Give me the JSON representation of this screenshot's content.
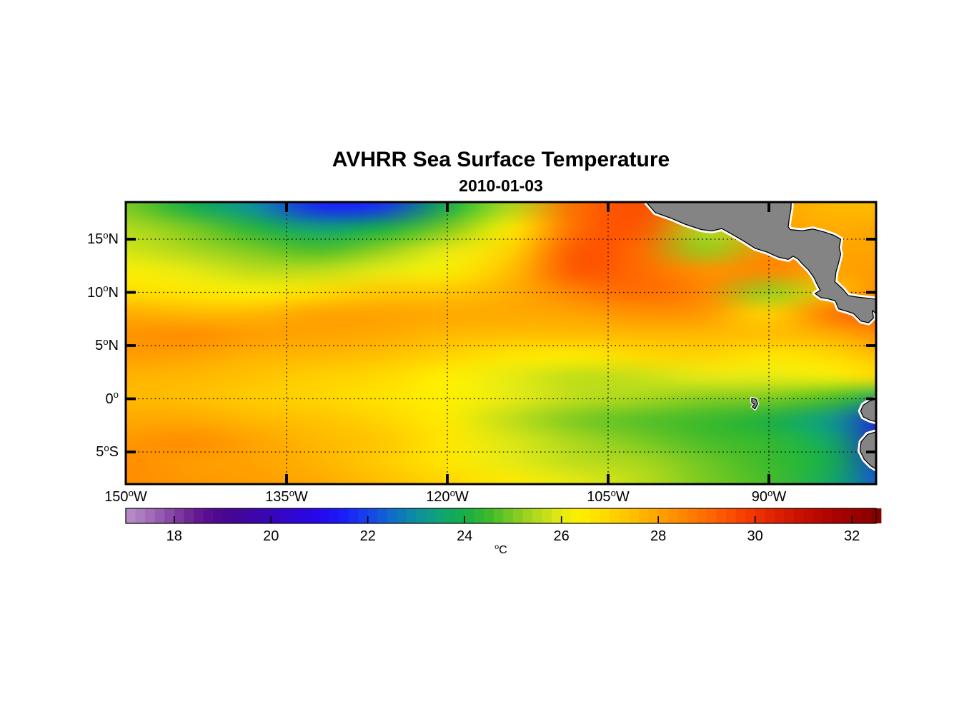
{
  "chart_data": {
    "type": "heatmap",
    "title": "AVHRR Sea Surface Temperature",
    "subtitle": "2010-01-03",
    "x_axis": {
      "ticks": [
        {
          "lon": -150,
          "label": "150",
          "hemi": "W"
        },
        {
          "lon": -135,
          "label": "135",
          "hemi": "W"
        },
        {
          "lon": -120,
          "label": "120",
          "hemi": "W"
        },
        {
          "lon": -105,
          "label": "105",
          "hemi": "W"
        },
        {
          "lon": -90,
          "label": "90",
          "hemi": "W"
        }
      ],
      "gridline_lons": [
        -135,
        -120,
        -105,
        -90
      ]
    },
    "y_axis": {
      "ticks": [
        {
          "lat": 15,
          "label": "15",
          "hemi": "N"
        },
        {
          "lat": 10,
          "label": "10",
          "hemi": "N"
        },
        {
          "lat": 5,
          "label": "5",
          "hemi": "N"
        },
        {
          "lat": 0,
          "label": "0",
          "hemi": ""
        },
        {
          "lat": -5,
          "label": "5",
          "hemi": "S"
        }
      ],
      "gridline_lats": [
        15,
        10,
        5,
        0,
        -5
      ]
    },
    "extent": {
      "lon_min": -150,
      "lon_max": -80,
      "lat_min": -8,
      "lat_max": 18.5
    },
    "grid": {
      "lons": [
        -150,
        -144,
        -138,
        -132,
        -126,
        -120,
        -114,
        -108,
        -102,
        -96,
        -90,
        -84,
        -78
      ],
      "lats": [
        18,
        16,
        14,
        12,
        10,
        8,
        6,
        4,
        2,
        0,
        -2,
        -4,
        -6,
        -8
      ],
      "sst_c": [
        [
          25.0,
          24.0,
          23.0,
          21.6,
          21.8,
          24.0,
          25.5,
          29.0,
          29.5,
          28.5,
          28.0,
          27.6,
          27.6
        ],
        [
          25.5,
          25.0,
          24.2,
          23.4,
          24.0,
          25.0,
          26.5,
          29.0,
          29.4,
          25.5,
          28.0,
          27.8,
          28.0
        ],
        [
          25.8,
          25.4,
          25.0,
          24.6,
          25.2,
          26.0,
          27.0,
          29.4,
          29.0,
          25.2,
          28.4,
          28.0,
          28.0
        ],
        [
          26.3,
          26.0,
          25.6,
          25.6,
          26.0,
          26.3,
          27.5,
          29.4,
          29.0,
          28.3,
          28.5,
          28.0,
          28.2
        ],
        [
          26.8,
          26.6,
          26.3,
          26.8,
          27.3,
          27.3,
          27.8,
          28.6,
          29.0,
          28.5,
          25.2,
          27.5,
          28.6
        ],
        [
          27.8,
          27.6,
          27.6,
          28.0,
          28.0,
          27.9,
          27.9,
          28.0,
          28.3,
          28.2,
          27.0,
          28.8,
          29.2
        ],
        [
          28.3,
          28.4,
          28.1,
          28.0,
          27.9,
          27.6,
          27.5,
          27.5,
          27.6,
          27.6,
          27.5,
          27.8,
          28.6
        ],
        [
          28.1,
          28.0,
          27.7,
          27.6,
          27.4,
          27.0,
          26.6,
          26.5,
          26.9,
          27.0,
          26.6,
          26.9,
          27.6
        ],
        [
          27.7,
          27.6,
          27.4,
          27.1,
          26.9,
          26.4,
          26.0,
          25.6,
          25.7,
          26.0,
          26.0,
          26.2,
          27.0
        ],
        [
          27.6,
          27.5,
          27.2,
          27.0,
          26.7,
          26.4,
          26.0,
          25.6,
          25.4,
          25.1,
          25.0,
          24.6,
          23.4
        ],
        [
          27.9,
          27.9,
          27.6,
          27.4,
          27.0,
          26.5,
          25.6,
          25.0,
          24.7,
          24.5,
          24.1,
          23.2,
          20.8
        ],
        [
          28.2,
          28.4,
          28.0,
          27.6,
          27.3,
          26.6,
          25.9,
          25.4,
          25.0,
          24.6,
          24.4,
          23.6,
          20.8
        ],
        [
          28.4,
          28.1,
          28.0,
          27.7,
          27.2,
          26.6,
          26.0,
          25.6,
          25.4,
          24.9,
          24.5,
          23.9,
          21.5
        ],
        [
          28.4,
          28.2,
          28.1,
          27.9,
          27.5,
          27.0,
          26.5,
          26.0,
          25.6,
          25.0,
          24.6,
          23.6,
          22.0
        ]
      ]
    },
    "colorbar": {
      "range_c": [
        17,
        32.5
      ],
      "tick_values": [
        18,
        20,
        22,
        24,
        26,
        28,
        30,
        32
      ],
      "unit": "C",
      "stops": [
        [
          17.0,
          "#BA90CB"
        ],
        [
          17.4,
          "#A875BE"
        ],
        [
          17.8,
          "#8F52AB"
        ],
        [
          18.2,
          "#762F98"
        ],
        [
          18.6,
          "#5C1090"
        ],
        [
          19.0,
          "#4A0790"
        ],
        [
          19.5,
          "#3F06A0"
        ],
        [
          20.0,
          "#3806B8"
        ],
        [
          20.5,
          "#2F06D4"
        ],
        [
          21.0,
          "#2408EE"
        ],
        [
          21.5,
          "#1A1EF8"
        ],
        [
          22.0,
          "#1642EC"
        ],
        [
          22.5,
          "#0F6CC8"
        ],
        [
          23.0,
          "#0D90A0"
        ],
        [
          23.5,
          "#10A474"
        ],
        [
          24.0,
          "#16AE48"
        ],
        [
          24.5,
          "#3CBA2C"
        ],
        [
          25.0,
          "#7CCA22"
        ],
        [
          25.5,
          "#B4DA1C"
        ],
        [
          26.0,
          "#E6EA14"
        ],
        [
          26.4,
          "#FFF000"
        ],
        [
          26.8,
          "#FFDE00"
        ],
        [
          27.2,
          "#FFCC00"
        ],
        [
          27.6,
          "#FFB900"
        ],
        [
          28.0,
          "#FFA300"
        ],
        [
          28.4,
          "#FF8D00"
        ],
        [
          28.8,
          "#FF7600"
        ],
        [
          29.2,
          "#FF5F00"
        ],
        [
          29.6,
          "#FA4800"
        ],
        [
          30.0,
          "#F03300"
        ],
        [
          30.5,
          "#DC1E00"
        ],
        [
          31.0,
          "#C60E00"
        ],
        [
          31.5,
          "#B10400"
        ],
        [
          32.0,
          "#9D0000"
        ],
        [
          32.5,
          "#870000"
        ]
      ]
    },
    "land": {
      "fill": "#848484",
      "outline": "#000000",
      "fringe": "#FFFFFF",
      "polygons": {
        "central_america": [
          [
            -101.8,
            18.9
          ],
          [
            -100.6,
            17.5
          ],
          [
            -99.2,
            17.0
          ],
          [
            -97.8,
            16.4
          ],
          [
            -96.3,
            15.9
          ],
          [
            -95.3,
            15.78
          ],
          [
            -94.4,
            16.0
          ],
          [
            -93.5,
            15.5
          ],
          [
            -92.4,
            14.85
          ],
          [
            -91.3,
            14.15
          ],
          [
            -90.2,
            13.8
          ],
          [
            -89.1,
            13.3
          ],
          [
            -88.2,
            13.1
          ],
          [
            -87.75,
            13.4
          ],
          [
            -87.3,
            13.15
          ],
          [
            -86.9,
            12.7
          ],
          [
            -86.3,
            12.1
          ],
          [
            -85.8,
            11.4
          ],
          [
            -85.5,
            10.75
          ],
          [
            -85.2,
            10.2
          ],
          [
            -85.7,
            9.9
          ],
          [
            -85.15,
            9.5
          ],
          [
            -84.5,
            9.4
          ],
          [
            -83.8,
            9.2
          ],
          [
            -83.5,
            8.45
          ],
          [
            -82.8,
            8.25
          ],
          [
            -82.1,
            8.0
          ],
          [
            -81.4,
            7.3
          ],
          [
            -80.7,
            7.15
          ],
          [
            -80.25,
            7.6
          ],
          [
            -80.35,
            8.3
          ],
          [
            -80.0,
            8.0
          ],
          [
            -79.4,
            7.4
          ],
          [
            -79.4,
            9.3
          ],
          [
            -80.4,
            9.4
          ],
          [
            -81.7,
            9.55
          ],
          [
            -82.6,
            9.7
          ],
          [
            -83.1,
            10.3
          ],
          [
            -83.85,
            11.0
          ],
          [
            -83.75,
            11.9
          ],
          [
            -83.5,
            12.8
          ],
          [
            -83.3,
            13.6
          ],
          [
            -83.45,
            14.2
          ],
          [
            -83.3,
            15.0
          ],
          [
            -83.9,
            15.35
          ],
          [
            -84.9,
            15.7
          ],
          [
            -85.9,
            15.95
          ],
          [
            -86.9,
            15.8
          ],
          [
            -88.0,
            15.9
          ],
          [
            -88.2,
            16.15
          ],
          [
            -88.1,
            17.0
          ],
          [
            -87.95,
            17.8
          ],
          [
            -87.9,
            18.9
          ]
        ],
        "south_america_north": [
          [
            -79.5,
            0.15
          ],
          [
            -80.6,
            -0.2
          ],
          [
            -81.2,
            -0.6
          ],
          [
            -81.45,
            -1.15
          ],
          [
            -81.2,
            -1.7
          ],
          [
            -80.6,
            -2.0
          ],
          [
            -79.5,
            -2.3
          ]
        ],
        "south_america_south": [
          [
            -79.5,
            -2.95
          ],
          [
            -80.8,
            -3.35
          ],
          [
            -81.4,
            -4.05
          ],
          [
            -81.5,
            -4.9
          ],
          [
            -81.1,
            -5.7
          ],
          [
            -80.5,
            -6.3
          ],
          [
            -79.5,
            -6.9
          ]
        ],
        "galapagos": [
          [
            -91.6,
            0.05
          ],
          [
            -91.2,
            -0.05
          ],
          [
            -91.05,
            -0.45
          ],
          [
            -91.3,
            -0.95
          ],
          [
            -91.55,
            -0.75
          ],
          [
            -91.35,
            -0.5
          ],
          [
            -91.6,
            -0.35
          ]
        ]
      }
    },
    "grid_lines": {
      "style": "dotted",
      "color": "#000000"
    },
    "frame_color": "#000000",
    "background": "#FFFFFF"
  }
}
